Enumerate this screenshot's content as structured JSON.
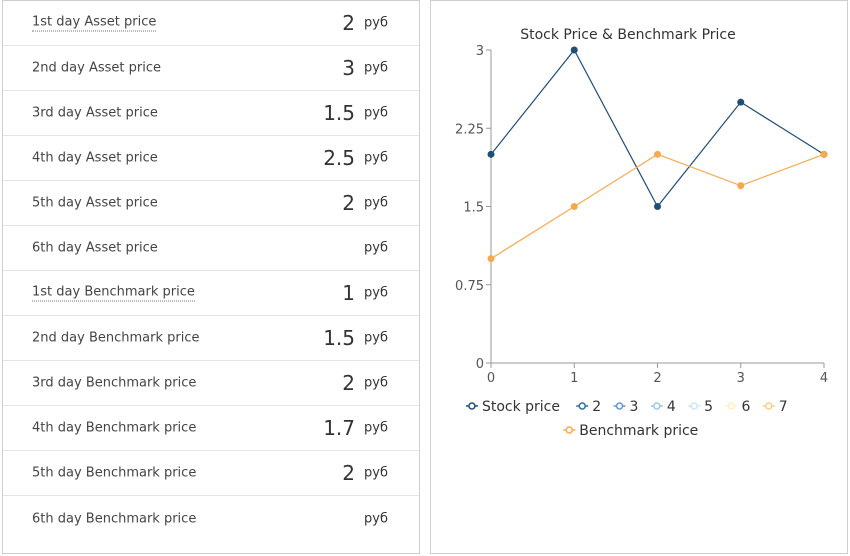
{
  "rows": [
    {
      "label": "1st day Asset price",
      "value": "2",
      "unit": "руб",
      "dotted": true
    },
    {
      "label": "2nd day Asset price",
      "value": "3",
      "unit": "руб",
      "dotted": false
    },
    {
      "label": "3rd day Asset price",
      "value": "1.5",
      "unit": "руб",
      "dotted": false
    },
    {
      "label": "4th day Asset price",
      "value": "2.5",
      "unit": "руб",
      "dotted": false
    },
    {
      "label": "5th day Asset price",
      "value": "2",
      "unit": "руб",
      "dotted": false
    },
    {
      "label": "6th day Asset price",
      "value": "",
      "unit": "руб",
      "dotted": false
    },
    {
      "label": "1st day Benchmark price",
      "value": "1",
      "unit": "руб",
      "dotted": true
    },
    {
      "label": "2nd day Benchmark price",
      "value": "1.5",
      "unit": "руб",
      "dotted": false
    },
    {
      "label": "3rd day Benchmark price",
      "value": "2",
      "unit": "руб",
      "dotted": false
    },
    {
      "label": "4th day Benchmark price",
      "value": "1.7",
      "unit": "руб",
      "dotted": false
    },
    {
      "label": "5th day Benchmark price",
      "value": "2",
      "unit": "руб",
      "dotted": false
    },
    {
      "label": "6th day Benchmark price",
      "value": "",
      "unit": "руб",
      "dotted": false
    }
  ],
  "chart_data": {
    "type": "line",
    "title": "Stock Price & Benchmark Price",
    "x": [
      0,
      1,
      2,
      3,
      4
    ],
    "x_ticks": [
      "0",
      "1",
      "2",
      "3",
      "4"
    ],
    "y_ticks": [
      "0",
      "0.75",
      "1.5",
      "2.25",
      "3"
    ],
    "ylim": [
      0,
      3
    ],
    "xlim": [
      0,
      4
    ],
    "grid": false,
    "legend_position": "bottom",
    "series": [
      {
        "name": "Stock price",
        "values": [
          2,
          3,
          1.5,
          2.5,
          2
        ],
        "color": "#1f4e79"
      },
      {
        "name": "Benchmark price",
        "values": [
          1,
          1.5,
          2,
          1.7,
          2
        ],
        "color": "#f8a94e"
      }
    ],
    "legend": [
      {
        "name": "Stock price",
        "color": "#1f4e79"
      },
      {
        "name": "2",
        "color": "#2f6ca3"
      },
      {
        "name": "3",
        "color": "#5b9bd5"
      },
      {
        "name": "4",
        "color": "#9dc6ea"
      },
      {
        "name": "5",
        "color": "#cfe4f4"
      },
      {
        "name": "6",
        "color": "#fdf0b8"
      },
      {
        "name": "7",
        "color": "#fbcf86"
      },
      {
        "name": "Benchmark price",
        "color": "#f8a94e"
      }
    ]
  }
}
